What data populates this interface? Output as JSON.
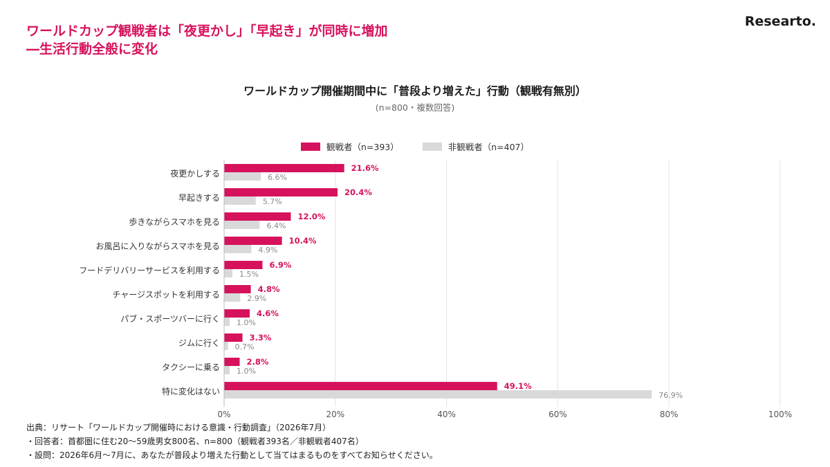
{
  "header": {
    "headline_line1": "ワールドカップ観戦者は「夜更かし」「早起き」が同時に増加",
    "headline_line2": "―生活行動全般に変化",
    "brand": "Researto."
  },
  "colors": {
    "accent": "#d6125d",
    "viewer": "#d6125d",
    "non_viewer": "#d9d9d9",
    "grid": "#e8e2dc"
  },
  "chart_data": {
    "type": "bar",
    "orientation": "horizontal",
    "title": "ワールドカップ開催期間中に「普段より増えた」行動（観戦有無別）",
    "subtitle": "(n=800・複数回答)",
    "categories": [
      "夜更かしする",
      "早起きする",
      "歩きながらスマホを見る",
      "お風呂に入りながらスマホを見る",
      "フードデリバリーサービスを利用する",
      "チャージスポットを利用する",
      "パブ・スポーツバーに行く",
      "ジムに行く",
      "タクシーに乗る",
      "特に変化はない"
    ],
    "series": [
      {
        "name": "観戦者（n=393）",
        "values": [
          21.6,
          20.4,
          12.0,
          10.4,
          6.9,
          4.8,
          4.6,
          3.3,
          2.8,
          49.1
        ],
        "labels": [
          "21.6%",
          "20.4%",
          "12.0%",
          "10.4%",
          "6.9%",
          "4.8%",
          "4.6%",
          "3.3%",
          "2.8%",
          "49.1%"
        ]
      },
      {
        "name": "非観戦者（n=407）",
        "values": [
          6.6,
          5.7,
          6.4,
          4.9,
          1.5,
          2.9,
          1.0,
          0.7,
          1.0,
          76.9
        ],
        "labels": [
          "6.6%",
          "5.7%",
          "6.4%",
          "4.9%",
          "1.5%",
          "2.9%",
          "1.0%",
          "0.7%",
          "1.0%",
          "76.9%"
        ]
      }
    ],
    "xlim": [
      0,
      100
    ],
    "xticks": [
      "0%",
      "20%",
      "40%",
      "60%",
      "80%",
      "100%"
    ],
    "grid": true,
    "legend_position": "top-center"
  },
  "footnotes": {
    "source": "出典：リサート「ワールドカップ開催時における意識・行動調査」（2026年7月）",
    "respondents": "・回答者：首都圏に住む20〜59歳男女800名、n=800（観戦者393名／非観戦者407名）",
    "question": "・設問：2026年6月〜7月に、あなたが普段より増えた行動として当てはまるものをすべてお知らせください。"
  }
}
